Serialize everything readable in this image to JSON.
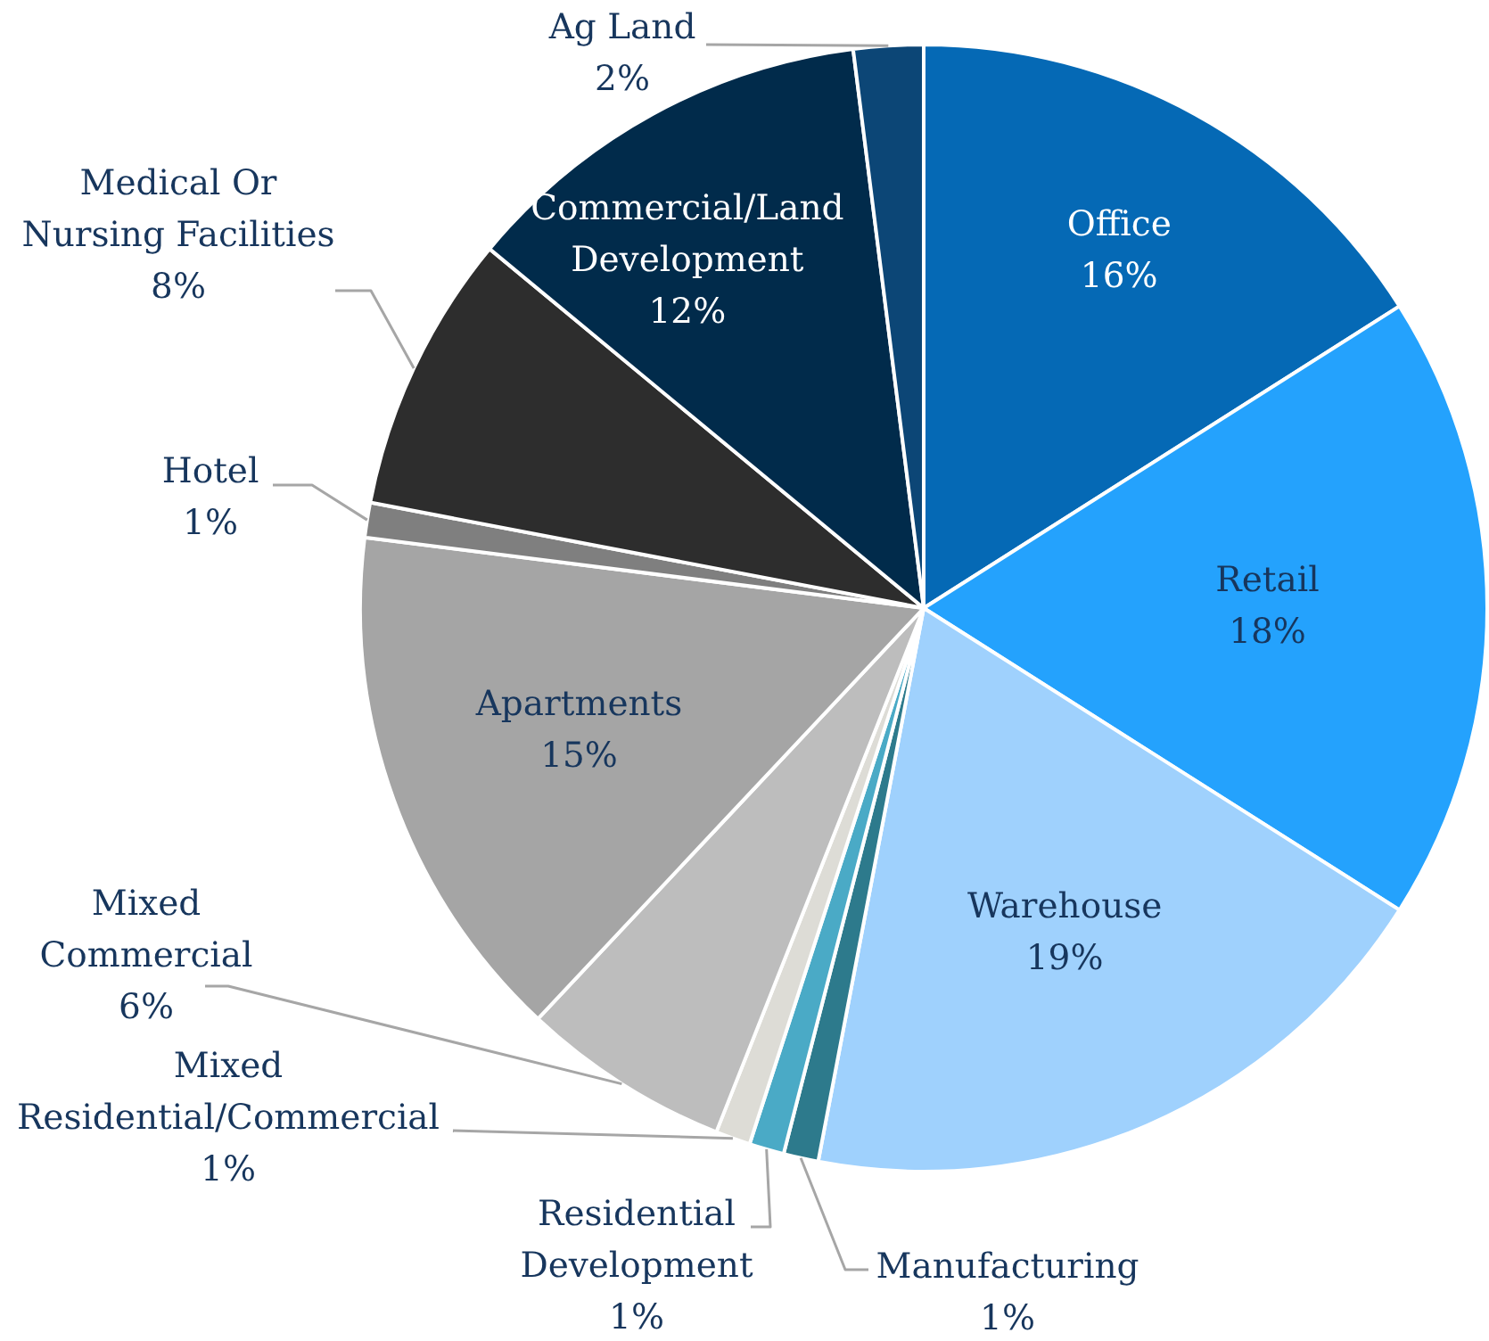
{
  "chart_data": {
    "type": "pie",
    "categories": [
      "Office",
      "Retail",
      "Warehouse",
      "Manufacturing",
      "Residential Development",
      "Mixed Residential/Commercial",
      "Mixed Commercial",
      "Apartments",
      "Hotel",
      "Medical Or Nursing Facilities",
      "Commercial/Land Development",
      "Ag Land"
    ],
    "values": [
      16,
      18,
      19,
      1,
      1,
      1,
      6,
      15,
      1,
      8,
      12,
      2
    ],
    "value_labels": [
      "16%",
      "18%",
      "19%",
      "1%",
      "1%",
      "1%",
      "6%",
      "15%",
      "1%",
      "8%",
      "12%",
      "2%"
    ],
    "colors": [
      "#0569b5",
      "#24a2fd",
      "#9fd1fd",
      "#2d7a8c",
      "#4aaac6",
      "#dddcd6",
      "#bdbdbd",
      "#a5a5a5",
      "#7f7f7f",
      "#2d2d2d",
      "#012b4b",
      "#0c4676"
    ]
  }
}
